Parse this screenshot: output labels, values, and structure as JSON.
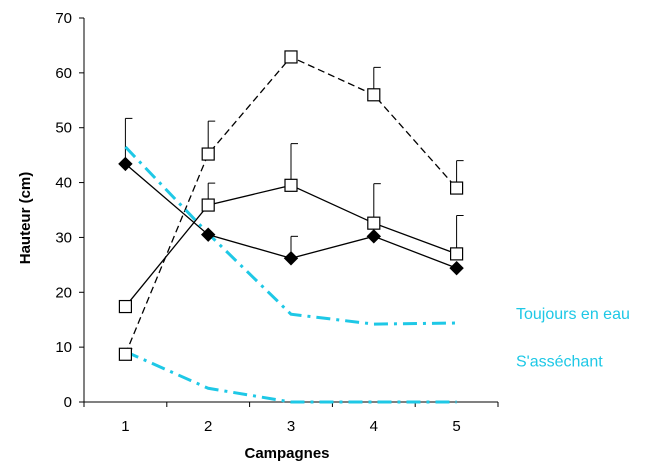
{
  "chart_data": {
    "type": "line",
    "xlabel": "Campagnes",
    "ylabel": "Hauteur  (cm)",
    "x": [
      1,
      2,
      3,
      4,
      5
    ],
    "xlim": [
      0.5,
      5.5
    ],
    "ylim": [
      0,
      70
    ],
    "yticks": [
      0,
      10,
      20,
      30,
      40,
      50,
      60,
      70
    ],
    "grid": false,
    "series": [
      {
        "values": [
          8.7,
          45.2,
          62.9,
          56.0,
          39.0
        ],
        "err": [
          1.0,
          6.0,
          0,
          5.0,
          5.0
        ],
        "style": "dashed",
        "color": "#000000",
        "marker": "square-open"
      },
      {
        "values": [
          17.4,
          35.9,
          39.5,
          32.6,
          27.0
        ],
        "err": [
          0,
          4.0,
          7.6,
          7.2,
          7.0
        ],
        "style": "solid",
        "color": "#000000",
        "marker": "square-open"
      },
      {
        "values": [
          43.4,
          30.5,
          26.2,
          30.2,
          24.4
        ],
        "err": [
          8.3,
          0,
          4.0,
          0,
          0
        ],
        "style": "solid",
        "color": "#000000",
        "marker": "diamond-filled"
      },
      {
        "name": "Toujours en eau",
        "values": [
          46.5,
          30.7,
          16.0,
          14.2,
          14.4
        ],
        "style": "dash-dot",
        "color": "#1EC8E6",
        "marker": "none"
      },
      {
        "name": "S'asséchant",
        "values": [
          9.2,
          2.5,
          0,
          0,
          0
        ],
        "style": "dash-dot",
        "color": "#1EC8E6",
        "marker": "none"
      }
    ]
  }
}
